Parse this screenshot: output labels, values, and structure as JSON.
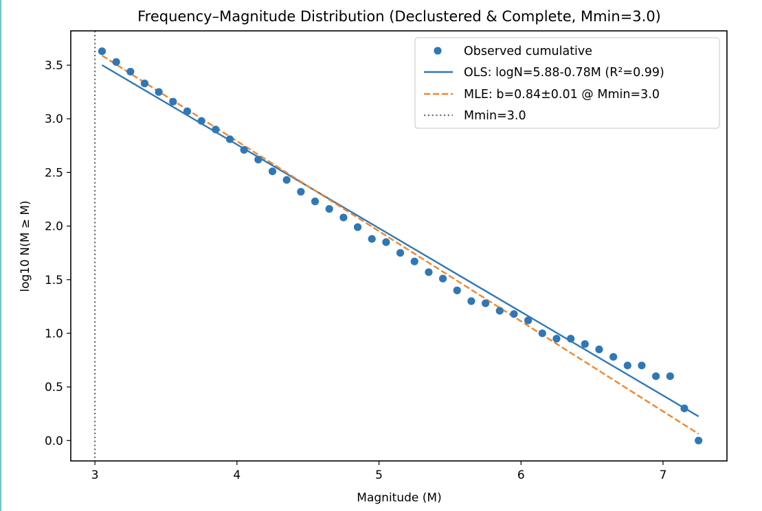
{
  "chart_data": {
    "type": "scatter",
    "title": "Frequency–Magnitude Distribution (Declustered & Complete, Mmin=3.0)",
    "xlabel": "Magnitude (M)",
    "ylabel": "log10 N(M ≥ M)",
    "xlim": [
      2.83,
      7.45
    ],
    "ylim": [
      -0.19,
      3.82
    ],
    "xticks": [
      3,
      4,
      5,
      6,
      7
    ],
    "xtick_labels": [
      "3",
      "4",
      "5",
      "6",
      "7"
    ],
    "yticks": [
      0.0,
      0.5,
      1.0,
      1.5,
      2.0,
      2.5,
      3.0,
      3.5
    ],
    "ytick_labels": [
      "0.0",
      "0.5",
      "1.0",
      "1.5",
      "2.0",
      "2.5",
      "3.0",
      "3.5"
    ],
    "grid": false,
    "legend_position": "top-right",
    "series": [
      {
        "name": "Observed cumulative",
        "kind": "scatter",
        "color": "#2f78b5",
        "x": [
          3.05,
          3.15,
          3.25,
          3.35,
          3.45,
          3.55,
          3.65,
          3.75,
          3.85,
          3.95,
          4.05,
          4.15,
          4.25,
          4.35,
          4.45,
          4.55,
          4.65,
          4.75,
          4.85,
          4.95,
          5.05,
          5.15,
          5.25,
          5.35,
          5.45,
          5.55,
          5.65,
          5.75,
          5.85,
          5.95,
          6.05,
          6.15,
          6.25,
          6.35,
          6.45,
          6.55,
          6.65,
          6.75,
          6.85,
          6.95,
          7.05,
          7.15,
          7.25
        ],
        "y": [
          3.63,
          3.53,
          3.44,
          3.33,
          3.25,
          3.16,
          3.07,
          2.98,
          2.9,
          2.81,
          2.71,
          2.62,
          2.51,
          2.43,
          2.32,
          2.23,
          2.16,
          2.08,
          1.99,
          1.88,
          1.85,
          1.75,
          1.67,
          1.57,
          1.51,
          1.4,
          1.3,
          1.28,
          1.21,
          1.18,
          1.12,
          1.0,
          0.95,
          0.95,
          0.9,
          0.85,
          0.78,
          0.7,
          0.7,
          0.6,
          0.6,
          0.3,
          0.0
        ]
      },
      {
        "name": "OLS: logN=5.88-0.78M  (R²=0.99)",
        "kind": "line",
        "style": "solid",
        "color": "#2f78b5",
        "intercept": 5.88,
        "slope": -0.78,
        "x_range": [
          3.05,
          7.25
        ]
      },
      {
        "name": "MLE: b=0.84±0.01 @ Mmin=3.0",
        "kind": "line",
        "style": "dashed",
        "color": "#f5842a",
        "intercept": 6.152,
        "slope": -0.84,
        "x_range": [
          3.05,
          7.25
        ]
      },
      {
        "name": "Mmin=3.0",
        "kind": "vline",
        "style": "dotted",
        "color": "#6e6e6e",
        "x": 3.0
      }
    ]
  }
}
